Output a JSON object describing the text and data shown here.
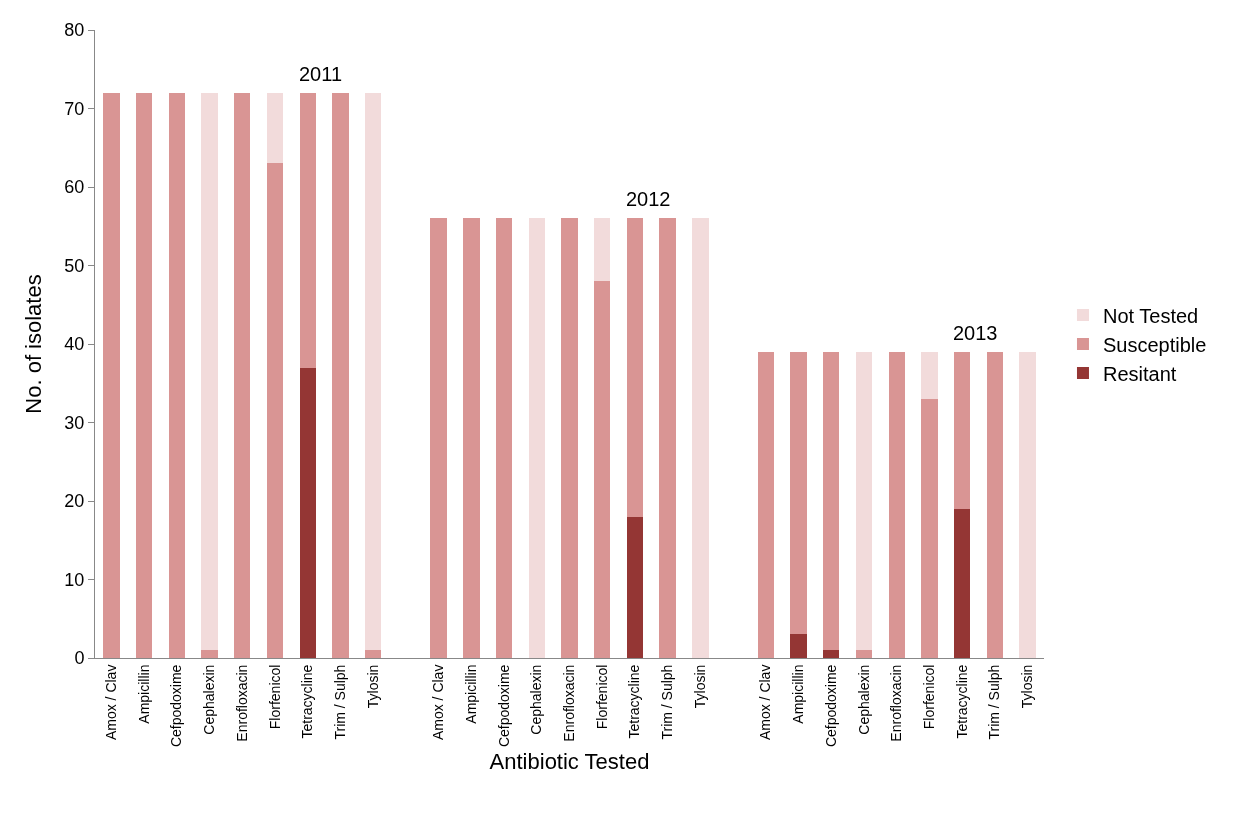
{
  "chart_data": {
    "type": "bar",
    "stacked": true,
    "xlabel": "Antibiotic Tested",
    "ylabel": "No. of isolates",
    "categories": [
      "Amox / Clav",
      "Ampicillin",
      "Cefpodoxime",
      "Cephalexin",
      "Enrofloxacin",
      "Florfenicol",
      "Tetracycline",
      "Trim / Sulph",
      "Tylosin",
      null,
      "Amox / Clav",
      "Ampicillin",
      "Cefpodoxime",
      "Cephalexin",
      "Enrofloxacin",
      "Florfenicol",
      "Tetracycline",
      "Trim / Sulph",
      "Tylosin",
      null,
      "Amox / Clav",
      "Ampicillin",
      "Cefpodoxime",
      "Cephalexin",
      "Enrofloxacin",
      "Florfenicol",
      "Tetracycline",
      "Trim / Sulph",
      "Tylosin"
    ],
    "series": [
      {
        "name": "Resitant",
        "color": "#943634",
        "values": [
          0,
          0,
          0,
          0,
          0,
          0,
          37,
          0,
          0,
          null,
          0,
          0,
          0,
          0,
          0,
          0,
          18,
          0,
          0,
          null,
          0,
          3,
          1,
          0,
          0,
          0,
          19,
          0,
          0
        ]
      },
      {
        "name": "Susceptible",
        "color": "#d99594",
        "values": [
          72,
          72,
          72,
          1,
          72,
          63,
          35,
          72,
          1,
          null,
          56,
          56,
          56,
          0,
          56,
          48,
          38,
          56,
          0,
          null,
          39,
          36,
          38,
          1,
          39,
          33,
          20,
          39,
          0
        ]
      },
      {
        "name": "Not Tested",
        "color": "#f2dbdb",
        "values": [
          0,
          0,
          0,
          71,
          0,
          9,
          0,
          0,
          71,
          null,
          0,
          0,
          0,
          56,
          0,
          8,
          0,
          0,
          56,
          null,
          0,
          0,
          0,
          38,
          0,
          6,
          0,
          0,
          39
        ]
      }
    ],
    "ylim": [
      0,
      80
    ],
    "yticks": [
      0,
      10,
      20,
      30,
      40,
      50,
      60,
      70,
      80
    ],
    "grid": false,
    "legend": "right",
    "annotations": [
      "2011",
      "2012",
      "2013"
    ]
  }
}
